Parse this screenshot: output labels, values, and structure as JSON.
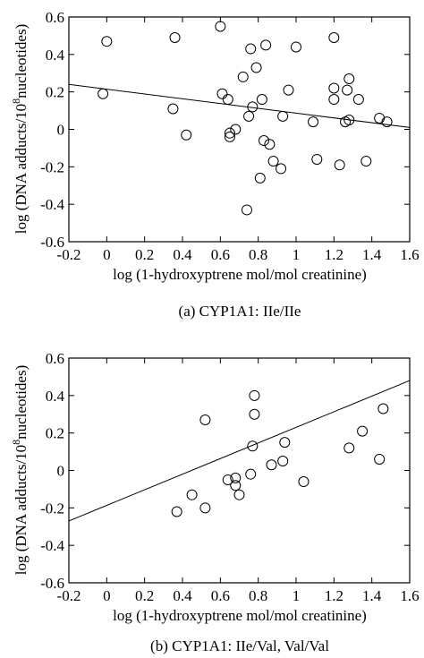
{
  "chart_data": [
    {
      "type": "scatter",
      "caption": "(a) CYP1A1: IIe/IIe",
      "xlabel": "log (1-hydroxyptrene mol/mol creatinine)",
      "ylabel_main": "log (DNA adducts/10",
      "ylabel_sup": "8",
      "ylabel_tail": "nucleotides)",
      "xlim": [
        -0.2,
        1.6
      ],
      "ylim": [
        -0.6,
        0.6
      ],
      "x_ticks": [
        "-0.2",
        "0",
        "0.2",
        "0.4",
        "0.6",
        "0.8",
        "1",
        "1.2",
        "1.4",
        "1.6"
      ],
      "y_ticks": [
        "-0.6",
        "-0.4",
        "-0.2",
        "0",
        "0.2",
        "0.4",
        "0.6"
      ],
      "fit_line": {
        "x": [
          -0.2,
          1.6
        ],
        "y": [
          0.24,
          0.01
        ]
      },
      "x": [
        -0.02,
        0.0,
        0.36,
        0.35,
        0.42,
        0.6,
        0.61,
        0.64,
        0.65,
        0.65,
        0.68,
        0.72,
        0.74,
        0.75,
        0.76,
        0.77,
        0.79,
        0.81,
        0.82,
        0.83,
        0.84,
        0.86,
        0.88,
        0.92,
        0.93,
        0.96,
        1.0,
        1.09,
        1.11,
        1.2,
        1.2,
        1.2,
        1.23,
        1.26,
        1.27,
        1.28,
        1.28,
        1.33,
        1.37,
        1.44,
        1.48
      ],
      "y": [
        0.19,
        0.47,
        0.49,
        0.11,
        -0.03,
        0.55,
        0.19,
        0.16,
        -0.02,
        -0.04,
        0.0,
        0.28,
        -0.43,
        0.07,
        0.43,
        0.12,
        0.33,
        -0.26,
        0.16,
        -0.06,
        0.45,
        -0.08,
        -0.17,
        -0.21,
        0.07,
        0.21,
        0.44,
        0.04,
        -0.16,
        0.49,
        0.22,
        0.16,
        -0.19,
        0.04,
        0.21,
        0.27,
        0.05,
        0.16,
        -0.17,
        0.06,
        0.04
      ]
    },
    {
      "type": "scatter",
      "caption": "(b) CYP1A1: IIe/Val, Val/Val",
      "xlabel": "log (1-hydroxyptrene mol/mol creatinine)",
      "ylabel_main": "log (DNA adducts/10",
      "ylabel_sup": "8",
      "ylabel_tail": "nucleotides)",
      "xlim": [
        -0.2,
        1.6
      ],
      "ylim": [
        -0.6,
        0.6
      ],
      "x_ticks": [
        "-0.2",
        "0",
        "0.2",
        "0.4",
        "0.6",
        "0.8",
        "1",
        "1.2",
        "1.4",
        "1.6"
      ],
      "y_ticks": [
        "-0.6",
        "-0.4",
        "-0.2",
        "0",
        "0.2",
        "0.4",
        "0.6"
      ],
      "fit_line": {
        "x": [
          -0.2,
          1.6
        ],
        "y": [
          -0.27,
          0.48
        ]
      },
      "x": [
        0.37,
        0.45,
        0.52,
        0.52,
        0.64,
        0.68,
        0.68,
        0.7,
        0.76,
        0.77,
        0.78,
        0.78,
        0.87,
        0.93,
        0.94,
        1.04,
        1.28,
        1.35,
        1.44,
        1.46
      ],
      "y": [
        -0.22,
        -0.13,
        0.27,
        -0.2,
        -0.05,
        -0.04,
        -0.08,
        -0.13,
        -0.02,
        0.13,
        0.3,
        0.4,
        0.03,
        0.05,
        0.15,
        -0.06,
        0.12,
        0.21,
        0.06,
        0.33
      ]
    }
  ]
}
